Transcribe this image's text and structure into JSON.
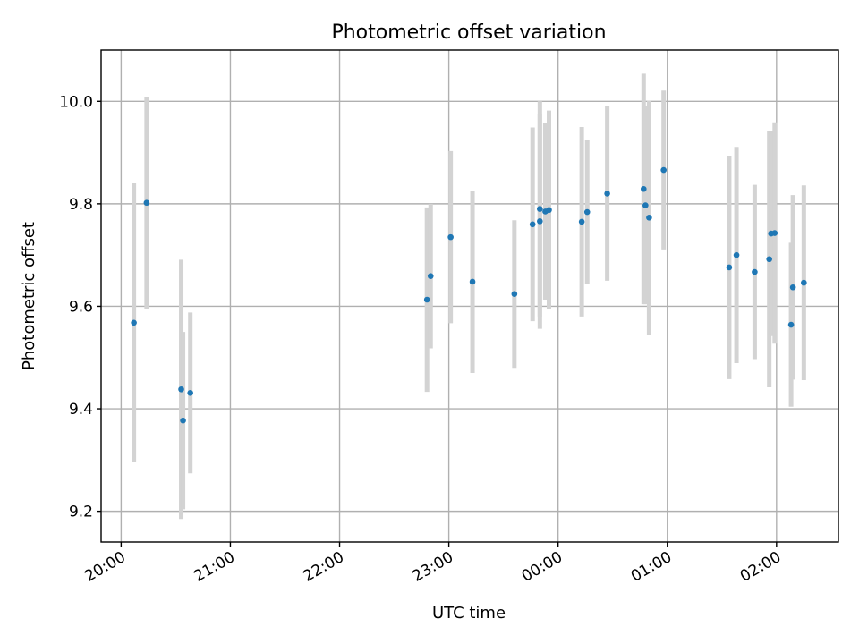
{
  "chart_data": {
    "type": "scatter",
    "title": "Photometric offset variation",
    "xlabel": "UTC time",
    "ylabel": "Photometric offset",
    "x_ticks": [
      "20:00",
      "21:00",
      "22:00",
      "23:00",
      "00:00",
      "01:00",
      "02:00"
    ],
    "y_ticks": [
      "9.2",
      "9.4",
      "9.6",
      "9.8",
      "10.0"
    ],
    "xlim": [
      "19:49",
      "02:34"
    ],
    "ylim": [
      9.14,
      10.1
    ],
    "grid": true,
    "colors": {
      "point": "#1f77b4",
      "errorbar": "#d3d3d3"
    },
    "points": [
      {
        "x": "20:07",
        "y": 9.568,
        "err": 0.272
      },
      {
        "x": "20:14",
        "y": 9.802,
        "err": 0.207
      },
      {
        "x": "20:33",
        "y": 9.438,
        "err": 0.253
      },
      {
        "x": "20:34",
        "y": 9.377,
        "err": 0.173
      },
      {
        "x": "20:38",
        "y": 9.431,
        "err": 0.157
      },
      {
        "x": "22:48",
        "y": 9.613,
        "err": 0.18
      },
      {
        "x": "22:50",
        "y": 9.659,
        "err": 0.141
      },
      {
        "x": "23:01",
        "y": 9.735,
        "err": 0.168
      },
      {
        "x": "23:13",
        "y": 9.648,
        "err": 0.178
      },
      {
        "x": "23:36",
        "y": 9.624,
        "err": 0.144
      },
      {
        "x": "23:46",
        "y": 9.76,
        "err": 0.189
      },
      {
        "x": "23:50",
        "y": 9.766,
        "err": 0.21
      },
      {
        "x": "23:50",
        "y": 9.79,
        "err": 0.21
      },
      {
        "x": "23:53",
        "y": 9.785,
        "err": 0.172
      },
      {
        "x": "23:55",
        "y": 9.788,
        "err": 0.194
      },
      {
        "x": "00:13",
        "y": 9.765,
        "err": 0.185
      },
      {
        "x": "00:16",
        "y": 9.784,
        "err": 0.141
      },
      {
        "x": "00:27",
        "y": 9.82,
        "err": 0.17
      },
      {
        "x": "00:47",
        "y": 9.829,
        "err": 0.225
      },
      {
        "x": "00:48",
        "y": 9.797,
        "err": 0.193
      },
      {
        "x": "00:50",
        "y": 9.773,
        "err": 0.228
      },
      {
        "x": "00:58",
        "y": 9.866,
        "err": 0.155
      },
      {
        "x": "01:34",
        "y": 9.676,
        "err": 0.218
      },
      {
        "x": "01:38",
        "y": 9.7,
        "err": 0.211
      },
      {
        "x": "01:48",
        "y": 9.667,
        "err": 0.17
      },
      {
        "x": "01:56",
        "y": 9.692,
        "err": 0.25
      },
      {
        "x": "01:57",
        "y": 9.742,
        "err": 0.2
      },
      {
        "x": "01:59",
        "y": 9.743,
        "err": 0.216
      },
      {
        "x": "02:08",
        "y": 9.564,
        "err": 0.16
      },
      {
        "x": "02:09",
        "y": 9.637,
        "err": 0.18
      },
      {
        "x": "02:15",
        "y": 9.646,
        "err": 0.19
      }
    ]
  }
}
